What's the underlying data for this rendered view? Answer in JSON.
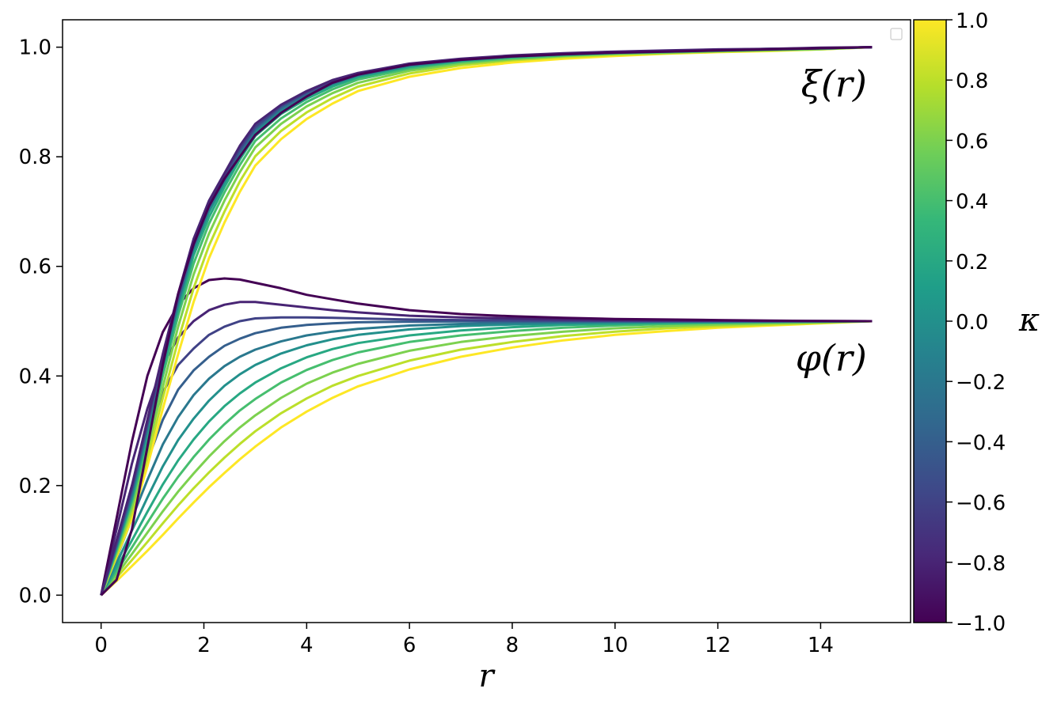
{
  "chart_data": {
    "type": "line",
    "xlabel": "r",
    "ylabel": "",
    "xlim": [
      -0.75,
      15.75
    ],
    "ylim": [
      -0.05,
      1.05
    ],
    "x_ticks": [
      0,
      2,
      4,
      6,
      8,
      10,
      12,
      14
    ],
    "y_ticks": [
      0.0,
      0.2,
      0.4,
      0.6,
      0.8,
      1.0
    ],
    "grid": false,
    "legend": {
      "placement": "top-right",
      "entries": []
    },
    "annotations": [
      {
        "text": "ξ(r)",
        "x": 14.9,
        "y": 0.93
      },
      {
        "text": "φ(r)",
        "x": 14.9,
        "y": 0.43
      }
    ],
    "colorbar": {
      "label": "κ",
      "min": -1.0,
      "max": 1.0,
      "ticks": [
        "1.0",
        "0.8",
        "0.6",
        "0.4",
        "0.2",
        "0.0",
        "−0.2",
        "−0.4",
        "−0.6",
        "−0.8",
        "−1.0"
      ],
      "colormap": [
        "#440154",
        "#482878",
        "#3e4989",
        "#31688e",
        "#26828e",
        "#1f9e89",
        "#35b779",
        "#6ece58",
        "#b5de2b",
        "#fde725"
      ]
    },
    "x": [
      0,
      0.3,
      0.6,
      0.9,
      1.2,
      1.5,
      1.8,
      2.1,
      2.4,
      2.7,
      3.0,
      3.5,
      4.0,
      4.5,
      5.0,
      6.0,
      7.0,
      8.0,
      9.0,
      10.0,
      11.0,
      12.0,
      13.0,
      14.0,
      15.0
    ],
    "kappa": [
      -1.0,
      -0.8,
      -0.6,
      -0.4,
      -0.2,
      0.0,
      0.2,
      0.4,
      0.6,
      0.8,
      1.0
    ],
    "series": [
      {
        "kappa": -1.0,
        "xi": [
          0,
          0.028,
          0.12,
          0.27,
          0.42,
          0.55,
          0.64,
          0.71,
          0.76,
          0.8,
          0.84,
          0.88,
          0.91,
          0.935,
          0.95,
          0.968,
          0.977,
          0.983,
          0.987,
          0.99,
          0.992,
          0.994,
          0.996,
          0.998,
          1.0
        ],
        "phi": [
          0,
          0.14,
          0.28,
          0.4,
          0.48,
          0.53,
          0.56,
          0.575,
          0.578,
          0.576,
          0.57,
          0.56,
          0.548,
          0.54,
          0.532,
          0.52,
          0.513,
          0.509,
          0.506,
          0.504,
          0.503,
          0.502,
          0.501,
          0.5005,
          0.5
        ]
      },
      {
        "kappa": -0.8,
        "xi": [
          0,
          0.1,
          0.2,
          0.32,
          0.44,
          0.55,
          0.65,
          0.72,
          0.77,
          0.82,
          0.86,
          0.895,
          0.92,
          0.94,
          0.953,
          0.97,
          0.979,
          0.985,
          0.989,
          0.992,
          0.994,
          0.996,
          0.997,
          0.999,
          1.0
        ],
        "phi": [
          0,
          0.12,
          0.24,
          0.34,
          0.42,
          0.47,
          0.5,
          0.52,
          0.53,
          0.535,
          0.535,
          0.53,
          0.525,
          0.52,
          0.516,
          0.51,
          0.507,
          0.505,
          0.503,
          0.502,
          0.5015,
          0.501,
          0.5005,
          0.5002,
          0.5
        ]
      },
      {
        "kappa": -0.6,
        "xi": [
          0,
          0.095,
          0.195,
          0.315,
          0.435,
          0.545,
          0.645,
          0.715,
          0.765,
          0.815,
          0.855,
          0.893,
          0.918,
          0.938,
          0.952,
          0.969,
          0.978,
          0.984,
          0.988,
          0.991,
          0.993,
          0.995,
          0.997,
          0.998,
          1.0
        ],
        "phi": [
          0,
          0.1,
          0.2,
          0.29,
          0.37,
          0.42,
          0.45,
          0.475,
          0.49,
          0.5,
          0.505,
          0.507,
          0.507,
          0.506,
          0.505,
          0.503,
          0.502,
          0.5015,
          0.501,
          0.5007,
          0.5005,
          0.5003,
          0.5002,
          0.5001,
          0.5
        ]
      },
      {
        "kappa": -0.4,
        "xi": [
          0,
          0.092,
          0.19,
          0.31,
          0.43,
          0.54,
          0.64,
          0.71,
          0.762,
          0.81,
          0.852,
          0.89,
          0.916,
          0.936,
          0.951,
          0.968,
          0.977,
          0.984,
          0.988,
          0.991,
          0.993,
          0.995,
          0.997,
          0.998,
          1.0
        ],
        "phi": [
          0,
          0.08,
          0.165,
          0.245,
          0.32,
          0.375,
          0.41,
          0.435,
          0.455,
          0.468,
          0.478,
          0.488,
          0.493,
          0.496,
          0.498,
          0.499,
          0.4995,
          0.4997,
          0.4998,
          0.4999,
          0.4999,
          0.5,
          0.5,
          0.5,
          0.5
        ]
      },
      {
        "kappa": -0.2,
        "xi": [
          0,
          0.09,
          0.185,
          0.305,
          0.425,
          0.535,
          0.635,
          0.705,
          0.758,
          0.806,
          0.849,
          0.887,
          0.914,
          0.934,
          0.949,
          0.967,
          0.977,
          0.983,
          0.987,
          0.99,
          0.993,
          0.995,
          0.996,
          0.998,
          1.0
        ],
        "phi": [
          0,
          0.068,
          0.14,
          0.21,
          0.275,
          0.325,
          0.365,
          0.395,
          0.418,
          0.435,
          0.448,
          0.463,
          0.474,
          0.481,
          0.486,
          0.492,
          0.495,
          0.497,
          0.498,
          0.499,
          0.4993,
          0.4996,
          0.4998,
          0.4999,
          0.5
        ]
      },
      {
        "kappa": 0.0,
        "xi": [
          0,
          0.088,
          0.18,
          0.3,
          0.42,
          0.53,
          0.63,
          0.7,
          0.753,
          0.801,
          0.845,
          0.884,
          0.911,
          0.932,
          0.948,
          0.966,
          0.976,
          0.983,
          0.987,
          0.99,
          0.992,
          0.994,
          0.996,
          0.998,
          1.0
        ],
        "phi": [
          0,
          0.058,
          0.118,
          0.178,
          0.235,
          0.283,
          0.322,
          0.355,
          0.382,
          0.403,
          0.42,
          0.441,
          0.456,
          0.467,
          0.475,
          0.485,
          0.491,
          0.494,
          0.496,
          0.4975,
          0.4985,
          0.499,
          0.4994,
          0.4997,
          0.5
        ]
      },
      {
        "kappa": 0.2,
        "xi": [
          0,
          0.085,
          0.175,
          0.29,
          0.41,
          0.52,
          0.62,
          0.69,
          0.745,
          0.795,
          0.838,
          0.878,
          0.906,
          0.928,
          0.945,
          0.964,
          0.975,
          0.982,
          0.986,
          0.989,
          0.992,
          0.994,
          0.996,
          0.998,
          1.0
        ],
        "phi": [
          0,
          0.05,
          0.1,
          0.152,
          0.202,
          0.246,
          0.284,
          0.317,
          0.345,
          0.368,
          0.388,
          0.414,
          0.434,
          0.449,
          0.46,
          0.474,
          0.483,
          0.489,
          0.493,
          0.495,
          0.497,
          0.498,
          0.4988,
          0.4994,
          0.5
        ]
      },
      {
        "kappa": 0.4,
        "xi": [
          0,
          0.082,
          0.17,
          0.28,
          0.4,
          0.51,
          0.605,
          0.678,
          0.735,
          0.785,
          0.829,
          0.87,
          0.9,
          0.923,
          0.941,
          0.961,
          0.973,
          0.98,
          0.985,
          0.989,
          0.991,
          0.993,
          0.995,
          0.997,
          1.0
        ],
        "phi": [
          0,
          0.043,
          0.087,
          0.132,
          0.176,
          0.216,
          0.252,
          0.284,
          0.312,
          0.337,
          0.358,
          0.388,
          0.411,
          0.429,
          0.443,
          0.462,
          0.474,
          0.482,
          0.488,
          0.492,
          0.495,
          0.4965,
          0.4978,
          0.4988,
          0.5
        ]
      },
      {
        "kappa": 0.6,
        "xi": [
          0,
          0.078,
          0.16,
          0.265,
          0.38,
          0.49,
          0.585,
          0.66,
          0.72,
          0.772,
          0.817,
          0.86,
          0.892,
          0.916,
          0.935,
          0.957,
          0.97,
          0.978,
          0.984,
          0.988,
          0.99,
          0.993,
          0.995,
          0.997,
          1.0
        ],
        "phi": [
          0,
          0.037,
          0.075,
          0.114,
          0.153,
          0.189,
          0.222,
          0.253,
          0.281,
          0.306,
          0.328,
          0.36,
          0.386,
          0.406,
          0.422,
          0.446,
          0.462,
          0.473,
          0.481,
          0.487,
          0.491,
          0.494,
          0.4962,
          0.498,
          0.5
        ]
      },
      {
        "kappa": 0.8,
        "xi": [
          0,
          0.074,
          0.15,
          0.25,
          0.36,
          0.465,
          0.56,
          0.638,
          0.7,
          0.755,
          0.801,
          0.847,
          0.881,
          0.907,
          0.928,
          0.952,
          0.967,
          0.976,
          0.982,
          0.986,
          0.989,
          0.992,
          0.994,
          0.996,
          1.0
        ],
        "phi": [
          0,
          0.032,
          0.064,
          0.097,
          0.131,
          0.164,
          0.195,
          0.224,
          0.251,
          0.276,
          0.299,
          0.332,
          0.359,
          0.382,
          0.4,
          0.428,
          0.448,
          0.462,
          0.473,
          0.481,
          0.487,
          0.491,
          0.494,
          0.497,
          0.5
        ]
      },
      {
        "kappa": 1.0,
        "xi": [
          0,
          0.07,
          0.14,
          0.235,
          0.34,
          0.44,
          0.535,
          0.615,
          0.68,
          0.736,
          0.784,
          0.832,
          0.869,
          0.897,
          0.92,
          0.946,
          0.962,
          0.972,
          0.979,
          0.984,
          0.988,
          0.991,
          0.993,
          0.996,
          1.0
        ],
        "phi": [
          0,
          0.026,
          0.053,
          0.081,
          0.11,
          0.14,
          0.169,
          0.197,
          0.223,
          0.248,
          0.271,
          0.306,
          0.335,
          0.36,
          0.381,
          0.412,
          0.435,
          0.452,
          0.465,
          0.475,
          0.482,
          0.488,
          0.492,
          0.496,
          0.5
        ]
      }
    ]
  }
}
